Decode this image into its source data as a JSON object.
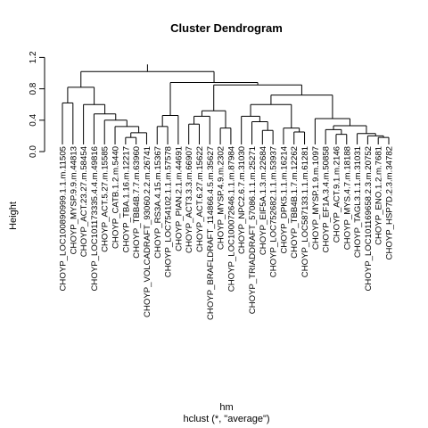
{
  "chart_data": {
    "type": "dendrogram",
    "title": "Cluster Dendrogram",
    "ylabel": "Height",
    "xlabel": "hm",
    "sublabel": "hclust (*, \"average\")",
    "ylim": [
      0,
      1.25
    ],
    "yticks": [
      "0.0",
      "0.4",
      "0.8",
      "1.2"
    ],
    "ytick_values": [
      0,
      0.4,
      0.8,
      1.2
    ],
    "grid": false,
    "leaves": [
      "CHOYP_LOC100890999.1.1.m.11505",
      "CHOYP_MYSP.9.9.m.44813",
      "CHOYP_ACT.23.27.m.58454",
      "CHOYP_LOC101173335.4.4.m.49816",
      "CHOYP_ACT.5.27.m.15585",
      "CHOYP_CATB.1.2.m.5440",
      "CHOYP_TBA.1.16.m.12217",
      "CHOYP_TBB4B.7.7.m.63960",
      "CHOYP_VOLCADRAFT_93060.2.2.m.26741",
      "CHOYP_RS3A.4.15.m.15367",
      "CHOYP_LOC754102.1.1.m.57578",
      "CHOYP_PIAN.2.1.m.44691",
      "CHOYP_ACT3.3.3.m.66907",
      "CHOYP_ACT.6.27.m.15622",
      "CHOYP_BRAFLDRAFT_114866.4.5.m.35627",
      "CHOYP_MYSP.4.9.m.2302",
      "CHOYP_LOC100072646.1.1.m.87984",
      "CHOYP_NPC2.6.7.m.31030",
      "CHOYP_TRIADDRAFT_57086.1.1.m.25271",
      "CHOYP_EIF5A.1.3.m.22684",
      "CHOYP_LOC752682.1.1.m.53937",
      "CHOYP_DPK5.1.1.m.16214",
      "CHOYP_TBB4B.1.7.m.12262",
      "CHOYP_LOC587133.1.1.m.61281",
      "CHOYP_MYSP.1.9.m.1097",
      "CHOYP_EF1A.3.4.m.50858",
      "CHOYP_ACT.9.1.m.2146",
      "CHOYP_MYS.4.7.m.18188",
      "CHOYP_TAGL3.1.1.m.31031",
      "CHOYP_LOC101169658.2.3.m.20752",
      "CHOYP_ENO.1.2.m.7681",
      "CHOYP_HSP7D.2.3.m.34782"
    ],
    "merges": [
      {
        "left": 6,
        "right": 7,
        "height": 0.18
      },
      {
        "left": "m1",
        "right": 8,
        "height": 0.24
      },
      {
        "left": 5,
        "right": "m2",
        "height": 0.32
      },
      {
        "left": 4,
        "right": "m3",
        "height": 0.4
      },
      {
        "left": 3,
        "right": "m4",
        "height": 0.48
      },
      {
        "left": 2,
        "right": "m5",
        "height": 0.6
      },
      {
        "left": 0,
        "right": 1,
        "height": 0.62
      },
      {
        "left": "m7",
        "right": "m6",
        "height": 0.82
      },
      {
        "left": 9,
        "right": 10,
        "height": 0.32
      },
      {
        "left": 11,
        "right": "m9",
        "height": 0.46
      },
      {
        "left": 12,
        "right": 13,
        "height": 0.35
      },
      {
        "left": "m11",
        "right": 14,
        "height": 0.45
      },
      {
        "left": 15,
        "right": 16,
        "height": 0.3
      },
      {
        "left": "m12",
        "right": "m13",
        "height": 0.52
      },
      {
        "left": 19,
        "right": 20,
        "height": 0.27
      },
      {
        "left": 18,
        "right": "m15",
        "height": 0.38
      },
      {
        "left": 17,
        "right": "m16",
        "height": 0.45
      },
      {
        "left": 22,
        "right": 23,
        "height": 0.25
      },
      {
        "left": 21,
        "right": "m18",
        "height": 0.3
      },
      {
        "left": "m17",
        "right": "m19",
        "height": 0.6
      },
      {
        "left": 26,
        "right": 27,
        "height": 0.22
      },
      {
        "left": 25,
        "right": "m21",
        "height": 0.28
      },
      {
        "left": 30,
        "right": 31,
        "height": 0.18
      },
      {
        "left": 29,
        "right": "m23",
        "height": 0.2
      },
      {
        "left": 28,
        "right": "m24",
        "height": 0.23
      },
      {
        "left": "m22",
        "right": "m25",
        "height": 0.33
      },
      {
        "left": 24,
        "right": "m26",
        "height": 0.42
      },
      {
        "left": "m20",
        "right": "m27",
        "height": 0.72
      },
      {
        "left": "m14",
        "right": "m28",
        "height": 0.85
      },
      {
        "left": "m10",
        "right": "m29",
        "height": 0.88
      },
      {
        "left": "m8",
        "right": "m30",
        "height": 1.02
      }
    ]
  }
}
